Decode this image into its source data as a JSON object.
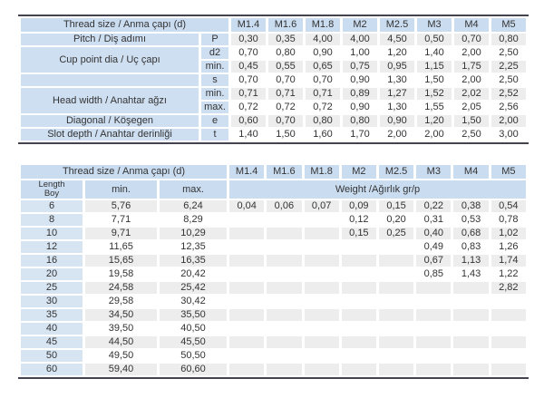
{
  "colors": {
    "header_blue": "#cadcf0",
    "label_blue": "#cfdff2",
    "length_blue": "#d7e5f3",
    "row_tint": "#ededed",
    "rule": "#44444e",
    "text": "#333333"
  },
  "top_table": {
    "title": "Thread size / Anma çapı (d)",
    "columns": [
      "M1.4",
      "M1.6",
      "M1.8",
      "M2",
      "M2.5",
      "M3",
      "M4",
      "M5"
    ],
    "rows": [
      {
        "label": "Pitch / Diş adımı",
        "label_rowspan": 1,
        "param": "P",
        "values": [
          "0,30",
          "0,35",
          "4,00",
          "4,00",
          "4,50",
          "0,50",
          "0,70",
          "0,80"
        ]
      },
      {
        "label": "Cup point dia / Uç çapı",
        "label_rowspan": 2,
        "param": "d2",
        "values": [
          "0,70",
          "0,80",
          "0,90",
          "1,00",
          "1,20",
          "1,40",
          "2,00",
          "2,50"
        ]
      },
      {
        "label": null,
        "param": "min.",
        "values": [
          "0,45",
          "0,55",
          "0,65",
          "0,75",
          "0,95",
          "1,15",
          "1,75",
          "2,25"
        ]
      },
      {
        "label": "",
        "label_rowspan": 1,
        "param": "s",
        "values": [
          "0,70",
          "0,70",
          "0,70",
          "0,90",
          "1,30",
          "1,50",
          "2,00",
          "2,50"
        ]
      },
      {
        "label": "Head width / Anahtar ağzı",
        "label_rowspan": 2,
        "param": "min.",
        "values": [
          "0,71",
          "0,71",
          "0,71",
          "0,89",
          "1,27",
          "1,52",
          "2,02",
          "2,52"
        ]
      },
      {
        "label": null,
        "param": "max.",
        "values": [
          "0,72",
          "0,72",
          "0,72",
          "0,90",
          "1,30",
          "1,55",
          "2,05",
          "2,56"
        ]
      },
      {
        "label": "Diagonal / Köşegen",
        "label_rowspan": 1,
        "param": "e",
        "values": [
          "0,60",
          "0,70",
          "0,80",
          "0,80",
          "0,90",
          "1,20",
          "1,50",
          "2,00"
        ]
      },
      {
        "label": "Slot depth / Anahtar derinliği",
        "label_rowspan": 1,
        "param": "t",
        "values": [
          "1,40",
          "1,50",
          "1,60",
          "1,70",
          "2,00",
          "2,00",
          "2,50",
          "3,00"
        ]
      }
    ]
  },
  "bottom_table": {
    "title": "Thread size / Anma çapı (d)",
    "columns": [
      "M1.4",
      "M1.6",
      "M1.8",
      "M2",
      "M2.5",
      "M3",
      "M4",
      "M5"
    ],
    "length_label_line1": "Length",
    "length_label_line2": "Boy",
    "min_label": "min.",
    "max_label": "max.",
    "weight_label": "Weight /Ağırlık gr/p",
    "rows": [
      {
        "length": "6",
        "min": "5,76",
        "max": "6,24",
        "weights": [
          "0,04",
          "0,06",
          "0,07",
          "0,09",
          "0,15",
          "0,22",
          "0,38",
          "0,54"
        ]
      },
      {
        "length": "8",
        "min": "7,71",
        "max": "8,29",
        "weights": [
          "",
          "",
          "",
          "0,12",
          "0,20",
          "0,31",
          "0,53",
          "0,78"
        ]
      },
      {
        "length": "10",
        "min": "9,71",
        "max": "10,29",
        "weights": [
          "",
          "",
          "",
          "0,15",
          "0,25",
          "0,40",
          "0,68",
          "1,02"
        ]
      },
      {
        "length": "12",
        "min": "11,65",
        "max": "12,35",
        "weights": [
          "",
          "",
          "",
          "",
          "",
          "0,49",
          "0,83",
          "1,26"
        ]
      },
      {
        "length": "16",
        "min": "15,65",
        "max": "16,35",
        "weights": [
          "",
          "",
          "",
          "",
          "",
          "0,67",
          "1,13",
          "1,74"
        ]
      },
      {
        "length": "20",
        "min": "19,58",
        "max": "20,42",
        "weights": [
          "",
          "",
          "",
          "",
          "",
          "0,85",
          "1,43",
          "1,22"
        ]
      },
      {
        "length": "25",
        "min": "24,58",
        "max": "25,42",
        "weights": [
          "",
          "",
          "",
          "",
          "",
          "",
          "",
          "2,82"
        ]
      },
      {
        "length": "30",
        "min": "29,58",
        "max": "30,42",
        "weights": [
          "",
          "",
          "",
          "",
          "",
          "",
          "",
          ""
        ]
      },
      {
        "length": "35",
        "min": "34,50",
        "max": "35,50",
        "weights": [
          "",
          "",
          "",
          "",
          "",
          "",
          "",
          ""
        ]
      },
      {
        "length": "40",
        "min": "39,50",
        "max": "40,50",
        "weights": [
          "",
          "",
          "",
          "",
          "",
          "",
          "",
          ""
        ]
      },
      {
        "length": "45",
        "min": "44,50",
        "max": "45,50",
        "weights": [
          "",
          "",
          "",
          "",
          "",
          "",
          "",
          ""
        ]
      },
      {
        "length": "50",
        "min": "49,50",
        "max": "50,50",
        "weights": [
          "",
          "",
          "",
          "",
          "",
          "",
          "",
          ""
        ]
      },
      {
        "length": "60",
        "min": "59,40",
        "max": "60,60",
        "weights": [
          "",
          "",
          "",
          "",
          "",
          "",
          "",
          ""
        ]
      }
    ]
  }
}
